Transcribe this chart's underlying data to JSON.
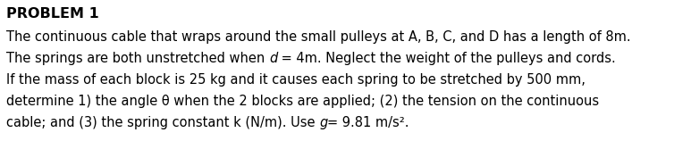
{
  "title": "PROBLEM 1",
  "line1": "The continuous cable that wraps around the small pulleys at A, B, C, and D has a length of 8m.",
  "line2_pre": "The springs are both unstretched when ",
  "line2_italic": "d",
  "line2_post": " = 4m. Neglect the weight of the pulleys and cords.",
  "line3": "If the mass of each block is 25 kg and it causes each spring to be stretched by 500 mm,",
  "line4": "determine 1) the angle θ when the 2 blocks are applied; (2) the tension on the continuous",
  "line5_pre": "cable; and (3) the spring constant k (N/m). Use ",
  "line5_italic": "g",
  "line5_post": "= 9.81 m/s².",
  "background_color": "#ffffff",
  "text_color": "#000000",
  "title_fontsize": 11.5,
  "body_fontsize": 10.5,
  "fig_width": 7.73,
  "fig_height": 1.58,
  "dpi": 100
}
